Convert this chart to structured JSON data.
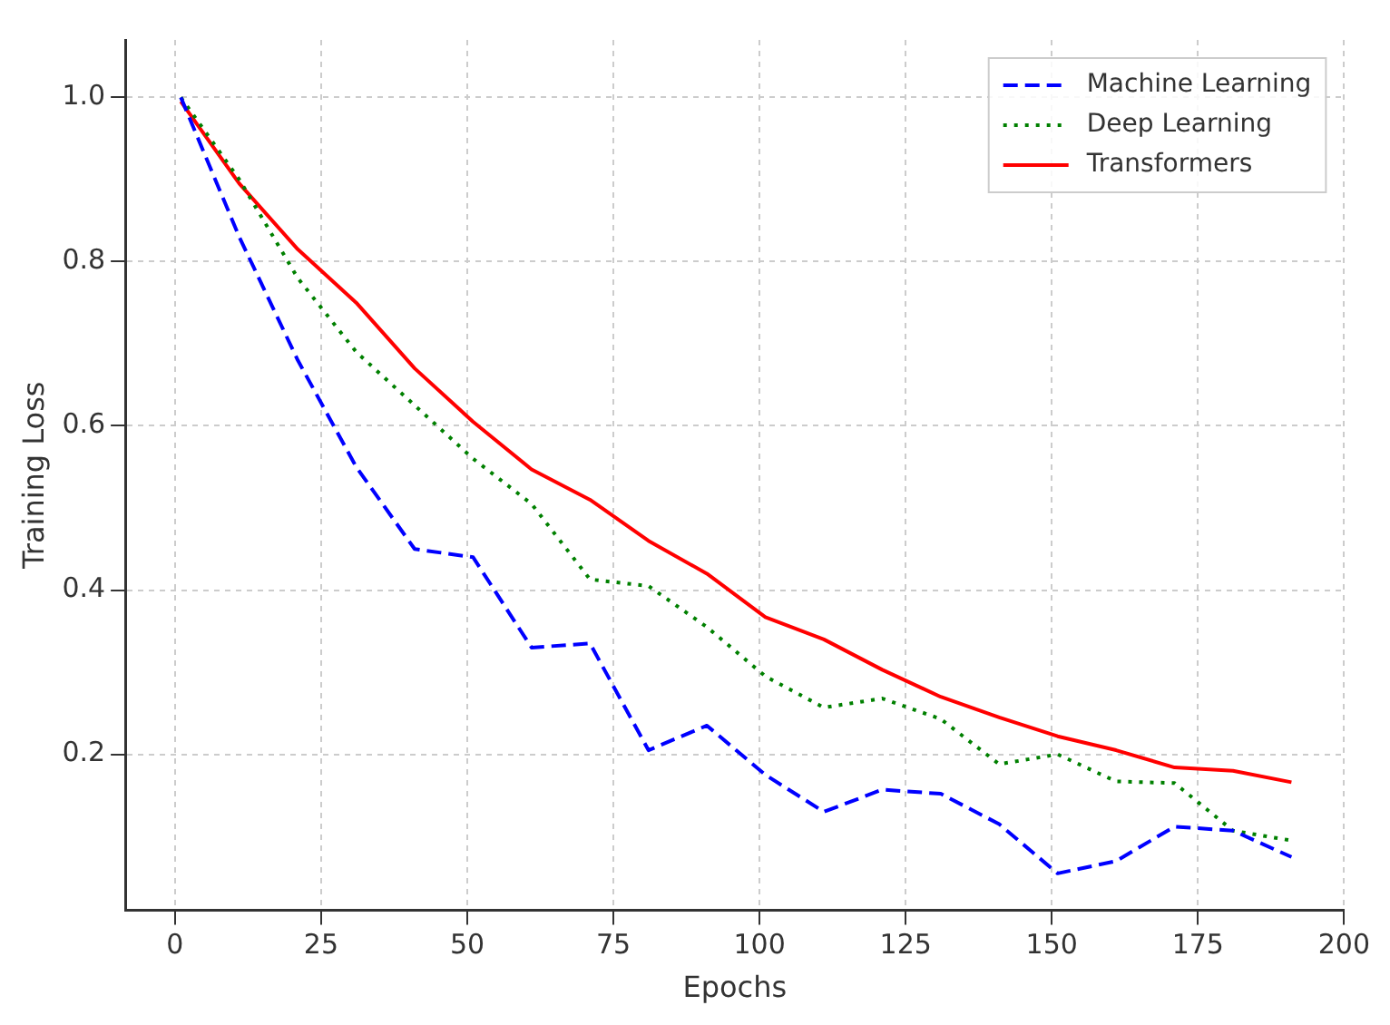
{
  "chart_data": {
    "type": "line",
    "xlabel": "Epochs",
    "ylabel": "Training Loss",
    "x": [
      1,
      11,
      21,
      31,
      41,
      51,
      61,
      71,
      81,
      91,
      101,
      111,
      121,
      131,
      141,
      151,
      161,
      171,
      181,
      191
    ],
    "series": [
      {
        "name": "Machine Learning",
        "color": "#0000ff",
        "line_style": "dashed",
        "values": [
          1.0,
          0.83,
          0.68,
          0.55,
          0.45,
          0.44,
          0.33,
          0.335,
          0.205,
          0.235,
          0.175,
          0.13,
          0.157,
          0.152,
          0.115,
          0.055,
          0.07,
          0.112,
          0.107,
          0.075
        ]
      },
      {
        "name": "Deep Learning",
        "color": "#008000",
        "line_style": "dotted",
        "values": [
          1.0,
          0.9,
          0.78,
          0.69,
          0.625,
          0.56,
          0.505,
          0.413,
          0.405,
          0.355,
          0.295,
          0.257,
          0.268,
          0.243,
          0.188,
          0.2,
          0.167,
          0.165,
          0.107,
          0.095
        ]
      },
      {
        "name": "Transformers",
        "color": "#ff0000",
        "line_style": "solid",
        "values": [
          0.995,
          0.895,
          0.815,
          0.75,
          0.67,
          0.605,
          0.547,
          0.51,
          0.46,
          0.42,
          0.367,
          0.34,
          0.303,
          0.27,
          0.245,
          0.222,
          0.205,
          0.184,
          0.18,
          0.166
        ]
      }
    ],
    "xlim": [
      -8.5,
      200
    ],
    "xticks": [
      0,
      25,
      50,
      75,
      100,
      125,
      150,
      175,
      200
    ],
    "ylim": [
      0.01,
      1.07
    ],
    "yticks": [
      0.2,
      0.4,
      0.6,
      0.8,
      {
        "value": 1,
        "label": "1.0"
      }
    ],
    "grid": true,
    "legend": "top right",
    "marker": "none"
  }
}
